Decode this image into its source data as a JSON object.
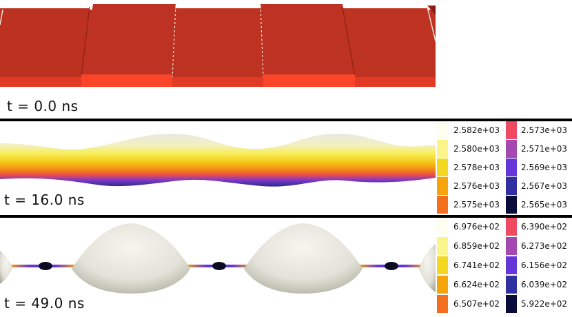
{
  "panels": [
    {
      "time_label": "t = 0.0 ns"
    },
    {
      "time_label": "t = 16.0 ns",
      "legend_left": {
        "values": [
          "2.582e+03",
          "2.580e+03",
          "2.578e+03",
          "2.576e+03",
          "2.575e+03"
        ],
        "colors": [
          "#fdfdf0",
          "#fbf488",
          "#f4d81f",
          "#f5a50b",
          "#f36f1e"
        ]
      },
      "legend_right": {
        "values": [
          "2.573e+03",
          "2.571e+03",
          "2.569e+03",
          "2.567e+03",
          "2.565e+03"
        ],
        "colors": [
          "#ef4a62",
          "#a548b0",
          "#6535d8",
          "#3030a0",
          "#0c0c3a"
        ]
      }
    },
    {
      "time_label": "t = 49.0 ns",
      "legend_left": {
        "values": [
          "6.976e+02",
          "6.859e+02",
          "6.741e+02",
          "6.624e+02",
          "6.507e+02"
        ],
        "colors": [
          "#fdfdf0",
          "#fbf488",
          "#f4d81f",
          "#f5a50b",
          "#f36f1e"
        ]
      },
      "legend_right": {
        "values": [
          "6.390e+02",
          "6.273e+02",
          "6.156e+02",
          "6.039e+02",
          "5.922e+02"
        ],
        "colors": [
          "#ef4a62",
          "#a548b0",
          "#6535d8",
          "#3030a0",
          "#0c0c3a"
        ]
      }
    }
  ]
}
